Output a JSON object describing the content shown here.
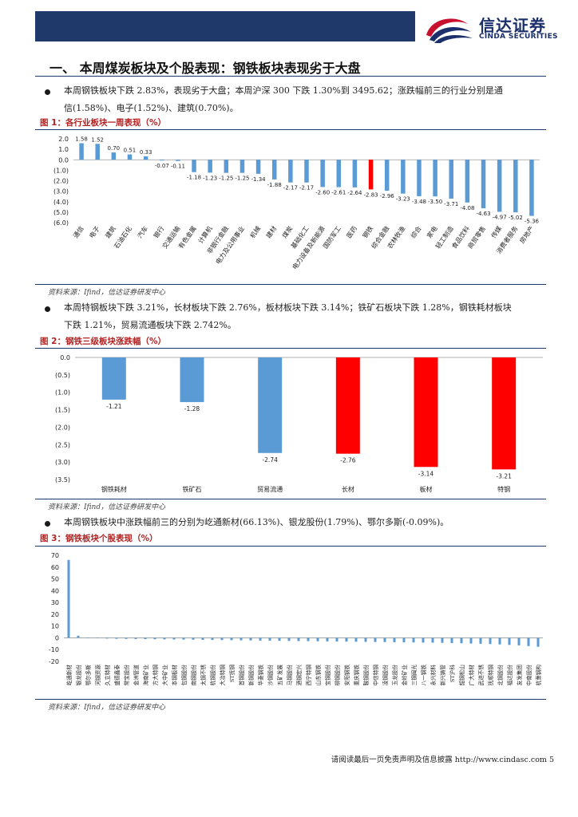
{
  "header": {
    "logo_cn": "信达证券",
    "logo_en": "CINDA SECURITIES",
    "colors": {
      "band": "#1f3a6a",
      "logo_red": "#c8102e",
      "logo_navy": "#1a2f6b"
    }
  },
  "section_title": "一、 本周煤炭板块及个股表现：钢铁板块表现劣于大盘",
  "paragraphs": {
    "p1_line1": "本周钢铁板块下跌 2.83%，表现劣于大盘；本周沪深 300 下跌 1.30%到 3495.62；涨跌幅前三的行业分别是通",
    "p1_line2": "信(1.58%)、电子(1.52%)、建筑(0.70%)。",
    "p2_line1": "本周特钢板块下跌 3.21%，长材板块下跌 2.76%，板材板块下跌 3.14%；铁矿石板块下跌 1.28%，钢铁耗材板块",
    "p2_line2": "下跌 1.21%，贸易流通板块下跌 2.742%。",
    "p3_line1": "本周钢铁板块中涨跌幅前三的分别为屹通新材(66.13%)、银龙股份(1.79%)、鄂尔多斯(-0.09%)。"
  },
  "figures": {
    "fig1_title": "图 1：各行业板块一周表现（%）",
    "fig2_title": "图 2：钢铁三级板块涨跌幅（%）",
    "fig3_title": "图 3：钢铁板块个股表现（%）",
    "source": "资料来源：Ifind，信达证券研发中心"
  },
  "footer": {
    "text": "请阅读最后一页免责声明及信息披露 http://www.cindasc.com",
    "page": "5"
  },
  "colors": {
    "positive": "#5b9bd5",
    "negative": "#5b9bd5",
    "highlight": "#ff0000"
  },
  "chart_data": [
    {
      "id": "fig1",
      "type": "bar",
      "title": "各行业板块一周表现（%）",
      "ylim": [
        -6.0,
        2.0
      ],
      "yticks": [
        "2.0",
        "1.0",
        "0.0",
        "(1.0)",
        "(2.0)",
        "(3.0)",
        "(4.0)",
        "(5.0)",
        "(6.0)"
      ],
      "categories": [
        "通信",
        "电子",
        "建筑",
        "石油石化",
        "汽车",
        "银行",
        "交通运输",
        "有色金属",
        "计算机",
        "非银行金融",
        "电力及公用事业",
        "机械",
        "建材",
        "煤炭",
        "基础化工",
        "电力设备及新能源",
        "国防军工",
        "医药",
        "钢铁",
        "综合金融",
        "农林牧渔",
        "综合",
        "家电",
        "轻工制造",
        "食品饮料",
        "商贸零售",
        "传媒",
        "消费者服务",
        "房地产"
      ],
      "values": [
        1.58,
        1.52,
        0.7,
        0.51,
        0.33,
        -0.07,
        -0.11,
        -1.18,
        -1.23,
        -1.25,
        -1.25,
        -1.34,
        -1.88,
        -2.17,
        -2.17,
        -2.6,
        -2.61,
        -2.64,
        -2.83,
        -2.96,
        -3.23,
        -3.48,
        -3.5,
        -3.71,
        -4.08,
        -4.63,
        -4.97,
        -5.02,
        -5.36
      ],
      "value_labels": [
        "1.58",
        "1.52",
        "0.70",
        "0.51",
        "0.33",
        "-0.07",
        "-0.11",
        "-1.18",
        "-1.23",
        "-1.25",
        "-1.25",
        "-1.34",
        "-1.88",
        "-2.17",
        "-2.17",
        "-2.60",
        "-2.61",
        "-2.64",
        "-2.83",
        "-2.96",
        "-3.23",
        "-3.48",
        "-3.50",
        "-3.71",
        "-4.08",
        "-4.63",
        "-4.97",
        "-5.02",
        "-5.36"
      ],
      "highlight_index": 18
    },
    {
      "id": "fig2",
      "type": "bar",
      "title": "钢铁三级板块涨跌幅（%）",
      "ylim": [
        -3.5,
        0.0
      ],
      "yticks": [
        "0.0",
        "(0.5)",
        "(1.0)",
        "(1.5)",
        "(2.0)",
        "(2.5)",
        "(3.0)",
        "(3.5)"
      ],
      "categories": [
        "钢铁耗材",
        "铁矿石",
        "贸易流通",
        "长材",
        "板材",
        "特钢"
      ],
      "values": [
        -1.21,
        -1.28,
        -2.74,
        -2.76,
        -3.14,
        -3.21
      ],
      "value_labels": [
        "-1.21",
        "-1.28",
        "-2.74",
        "-2.76",
        "-3.14",
        "-3.21"
      ],
      "colors": [
        "blue",
        "blue",
        "blue",
        "red",
        "red",
        "red"
      ]
    },
    {
      "id": "fig3",
      "type": "bar",
      "title": "钢铁板块个股表现（%）",
      "ylim": [
        -20,
        70
      ],
      "yticks": [
        "70",
        "60",
        "50",
        "40",
        "30",
        "20",
        "10",
        "0",
        "-10",
        "-20"
      ],
      "categories": [
        "屹通新材",
        "银龙股份",
        "鄂尔多斯",
        "河钢资源",
        "久立特材",
        "盛德鑫泰",
        "常宝股份",
        "金洲管道",
        "海南矿业",
        "方大特钢",
        "大中矿业",
        "本钢板材",
        "包钢股份",
        "南钢股份",
        "太钢不锈",
        "杭钢股份",
        "大冶特钢",
        "ST抚钢",
        "首钢股份",
        "新钢股份",
        "华菱钢铁",
        "沙钢股份",
        "五矿发展",
        "马钢股份",
        "酒钢宏兴",
        "西宁特钢",
        "山东钢铁",
        "宝钢股份",
        "柳钢股份",
        "安阳钢铁",
        "重庆钢铁",
        "鞍钢股份",
        "中信特钢",
        "凌钢股份",
        "玉龙股份",
        "金岭矿业",
        "三钢闽光",
        "八一钢铁",
        "永兴材料",
        "新兴铸管",
        "ST沪科",
        "韶钢松山",
        "广大特材",
        "武进不锈",
        "抚顺特钢",
        "北钢股份",
        "福达股份",
        "友发集团",
        "中南股份",
        "杭萧钢构"
      ],
      "values": [
        66.13,
        1.79,
        -0.09,
        -0.4,
        -0.6,
        -0.8,
        -0.9,
        -1.0,
        -1.1,
        -1.2,
        -1.3,
        -1.4,
        -1.5,
        -1.6,
        -1.7,
        -1.8,
        -1.9,
        -2.0,
        -2.1,
        -2.2,
        -2.3,
        -2.4,
        -2.5,
        -2.6,
        -2.7,
        -2.8,
        -2.9,
        -3.0,
        -3.1,
        -3.2,
        -3.3,
        -3.4,
        -3.5,
        -3.6,
        -3.7,
        -3.8,
        -3.9,
        -4.0,
        -4.1,
        -4.2,
        -4.4,
        -4.6,
        -4.8,
        -5.0,
        -5.3,
        -5.6,
        -6.0,
        -6.4,
        -7.0,
        -7.6
      ]
    }
  ]
}
